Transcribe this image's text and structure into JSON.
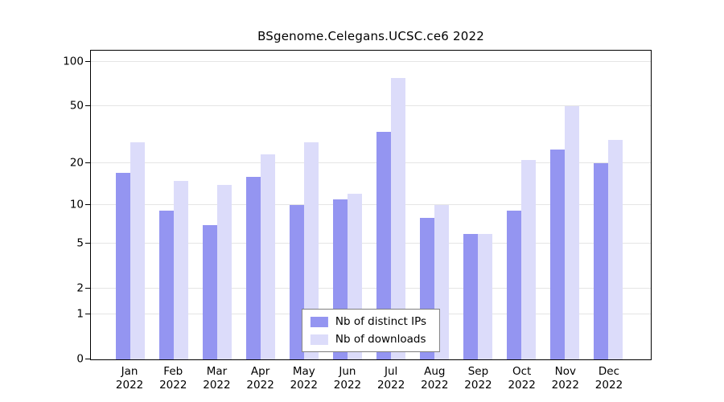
{
  "title": "BSgenome.Celegans.UCSC.ce6 2022",
  "chart_data": {
    "type": "bar",
    "title": "BSgenome.Celegans.UCSC.ce6 2022",
    "categories": [
      "Jan",
      "Feb",
      "Mar",
      "Apr",
      "May",
      "Jun",
      "Jul",
      "Aug",
      "Sep",
      "Oct",
      "Nov",
      "Dec"
    ],
    "year": "2022",
    "series": [
      {
        "name": "Nb of distinct IPs",
        "color": "#9495f1",
        "values": [
          17,
          9,
          7,
          16,
          10,
          11,
          33,
          8,
          6,
          9,
          25,
          20
        ]
      },
      {
        "name": "Nb of downloads",
        "color": "#dcdcfa",
        "values": [
          28,
          15,
          14,
          23,
          28,
          12,
          78,
          10,
          6,
          21,
          50,
          29
        ]
      }
    ],
    "y_ticks": [
      0,
      1,
      2,
      5,
      10,
      20,
      50,
      100
    ],
    "y_scale": "log1p",
    "ylim": [
      0,
      100
    ],
    "xlabel": "",
    "ylabel": "",
    "grid": "horizontal",
    "legend_position": "bottom-center-inside"
  }
}
